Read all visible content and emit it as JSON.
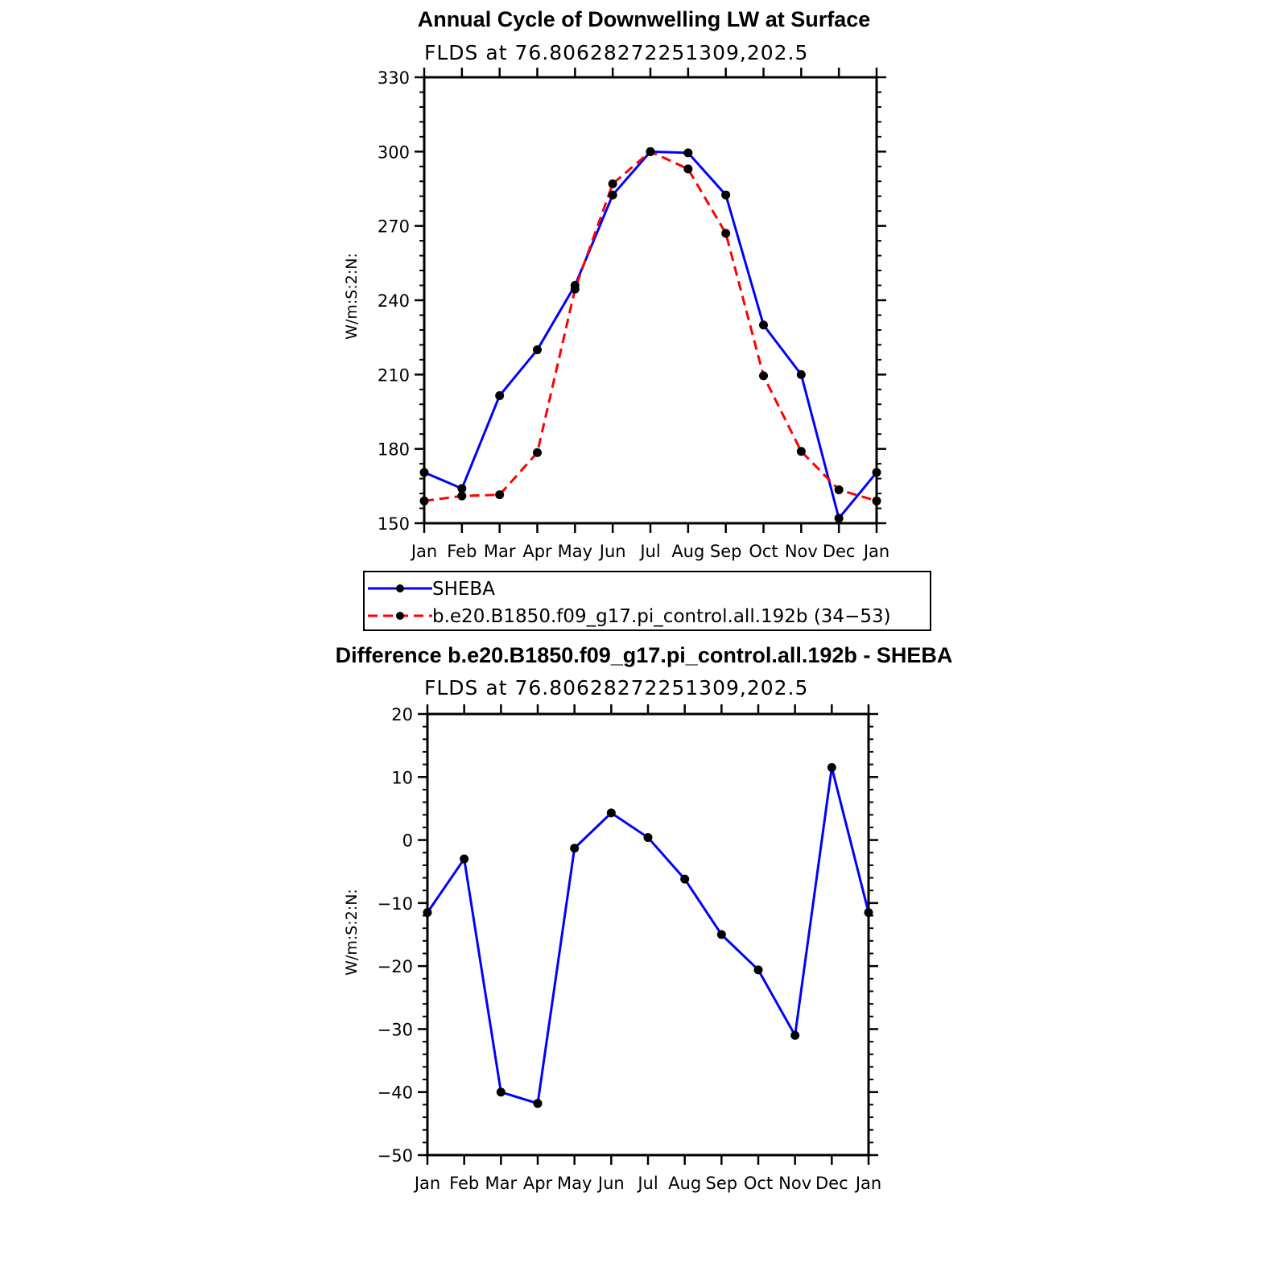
{
  "chart_data": [
    {
      "type": "line",
      "title": "Annual Cycle of Downwelling LW at Surface",
      "subtitle": "FLDS at 76.80628272251309,202.5",
      "ylabel": "W/m:S:2:N:",
      "xlabel": "",
      "categories": [
        "Jan",
        "Feb",
        "Mar",
        "Apr",
        "May",
        "Jun",
        "Jul",
        "Aug",
        "Sep",
        "Oct",
        "Nov",
        "Dec",
        "Jan"
      ],
      "ylim": [
        150,
        330
      ],
      "yticks": [
        "150",
        "180",
        "210",
        "240",
        "270",
        "300",
        "330"
      ],
      "grid": false,
      "legend_position": "bottom",
      "series": [
        {
          "name": "SHEBA",
          "color": "#0000ff",
          "dash": "solid",
          "values": [
            170.5,
            164,
            201.5,
            220,
            246,
            282.5,
            300,
            299.5,
            282.5,
            230,
            210,
            152,
            170.5
          ]
        },
        {
          "name": "b.e20.B1850.f09_g17.pi_control.all.192b (34−53)",
          "color": "#ff0000",
          "dash": "dashed",
          "values": [
            159,
            161,
            161.5,
            178.5,
            244.5,
            287,
            300,
            293,
            267,
            209.5,
            179,
            163.5,
            159
          ]
        }
      ]
    },
    {
      "type": "line",
      "title": "Difference b.e20.B1850.f09_g17.pi_control.all.192b - SHEBA",
      "subtitle": "FLDS at 76.80628272251309,202.5",
      "ylabel": "W/m:S:2:N:",
      "xlabel": "",
      "categories": [
        "Jan",
        "Feb",
        "Mar",
        "Apr",
        "May",
        "Jun",
        "Jul",
        "Aug",
        "Sep",
        "Oct",
        "Nov",
        "Dec",
        "Jan"
      ],
      "ylim": [
        -50,
        20
      ],
      "yticks": [
        "−50",
        "−40",
        "−30",
        "−20",
        "−10",
        "0",
        "10",
        "20"
      ],
      "grid": false,
      "series": [
        {
          "name": "",
          "color": "#0000ff",
          "dash": "solid",
          "values": [
            -11.5,
            -3,
            -40,
            -41.8,
            -1.3,
            4.3,
            0.4,
            -6.2,
            -15,
            -20.6,
            -31,
            11.5,
            -11.5
          ]
        }
      ]
    }
  ]
}
